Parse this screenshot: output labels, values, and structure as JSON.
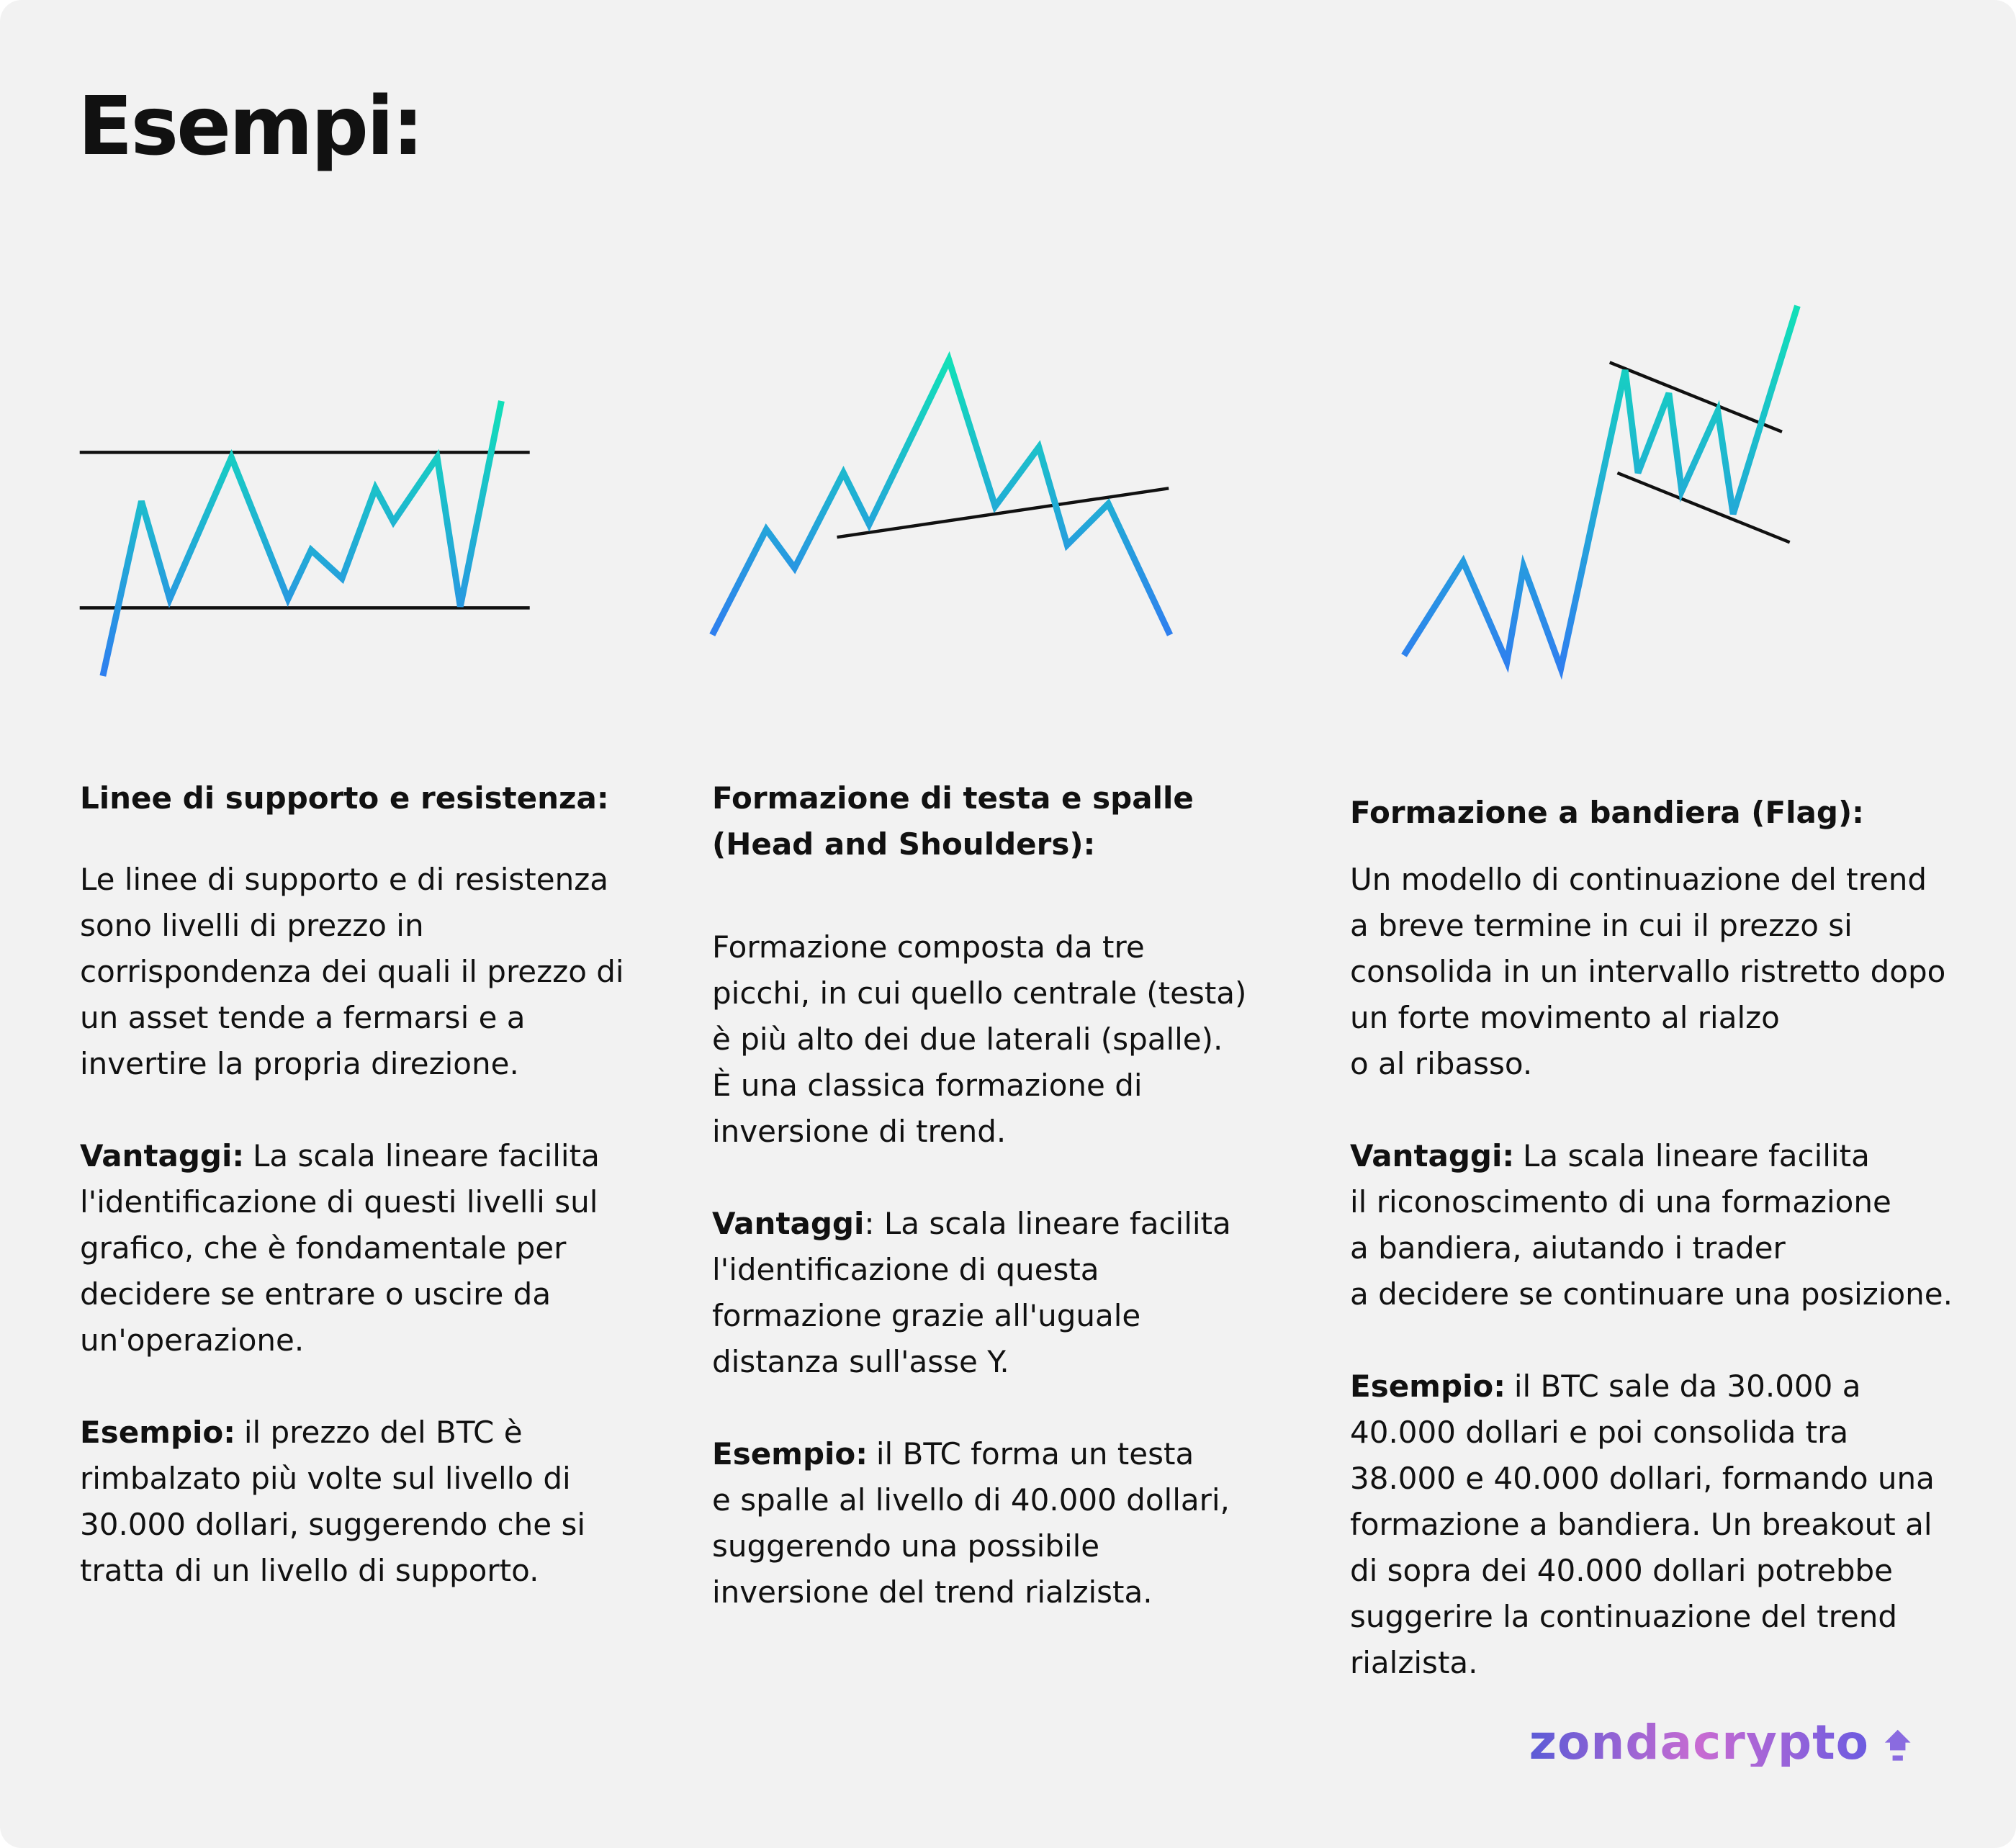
{
  "header": {
    "title": "Esempi:"
  },
  "columns": [
    {
      "heading": [
        "Linee di supporto e resistenza:"
      ],
      "paragraphs": [
        {
          "lines": [
            "Le linee di supporto e di resistenza",
            "sono livelli di prezzo in",
            "corrispondenza dei quali il prezzo di",
            "un asset tende a fermarsi e a",
            "invertire la propria direzione."
          ]
        },
        {
          "lead": "Vantaggi:",
          "lines": [
            "La scala lineare facilita",
            "l'identificazione di questi livelli sul",
            "grafico, che è fondamentale per",
            "decidere se entrare o uscire da",
            "un'operazione."
          ]
        },
        {
          "lead": "Esempio:",
          "lines": [
            "il prezzo del BTC è",
            "rimbalzato più volte sul livello di",
            "30.000 dollari, suggerendo che si",
            "tratta di un livello di supporto."
          ]
        }
      ]
    },
    {
      "heading": [
        "Formazione di testa e spalle",
        "(Head and Shoulders):"
      ],
      "paragraphs": [
        {
          "lines": [
            "Formazione composta da tre",
            "picchi, in cui quello centrale (testa)",
            "è più alto dei due laterali (spalle).",
            "È una classica formazione di",
            "inversione di trend."
          ]
        },
        {
          "lead": "Vantaggi",
          "lines": [
            ": La scala lineare facilita",
            "l'identificazione di questa",
            "formazione grazie all'uguale",
            "distanza sull'asse Y."
          ]
        },
        {
          "lead": "Esempio:",
          "lines": [
            "il BTC forma un testa",
            "e spalle al livello di 40.000 dollari,",
            "suggerendo una possibile",
            "inversione del trend rialzista."
          ]
        }
      ]
    },
    {
      "heading": [
        "Formazione a bandiera (Flag):"
      ],
      "paragraphs": [
        {
          "lines": [
            "Un modello di continuazione del trend",
            "a breve termine in cui il prezzo si",
            "consolida in un intervallo ristretto dopo",
            "un forte movimento al rialzo",
            "o al ribasso."
          ]
        },
        {
          "lead": "Vantaggi:",
          "lines": [
            "La scala lineare facilita",
            "il riconoscimento di una formazione",
            "a bandiera, aiutando i trader",
            "a decidere se continuare una posizione."
          ]
        },
        {
          "lead": "Esempio:",
          "lines": [
            "il BTC sale da 30.000 a",
            "40.000 dollari e poi consolida tra",
            "38.000 e 40.000 dollari, formando una",
            "formazione a bandiera. Un breakout al",
            "di sopra dei 40.000 dollari potrebbe",
            "suggerire la continuazione del trend",
            "rialzista."
          ]
        }
      ]
    }
  ],
  "footer": {
    "logo": "zondacrypto"
  }
}
